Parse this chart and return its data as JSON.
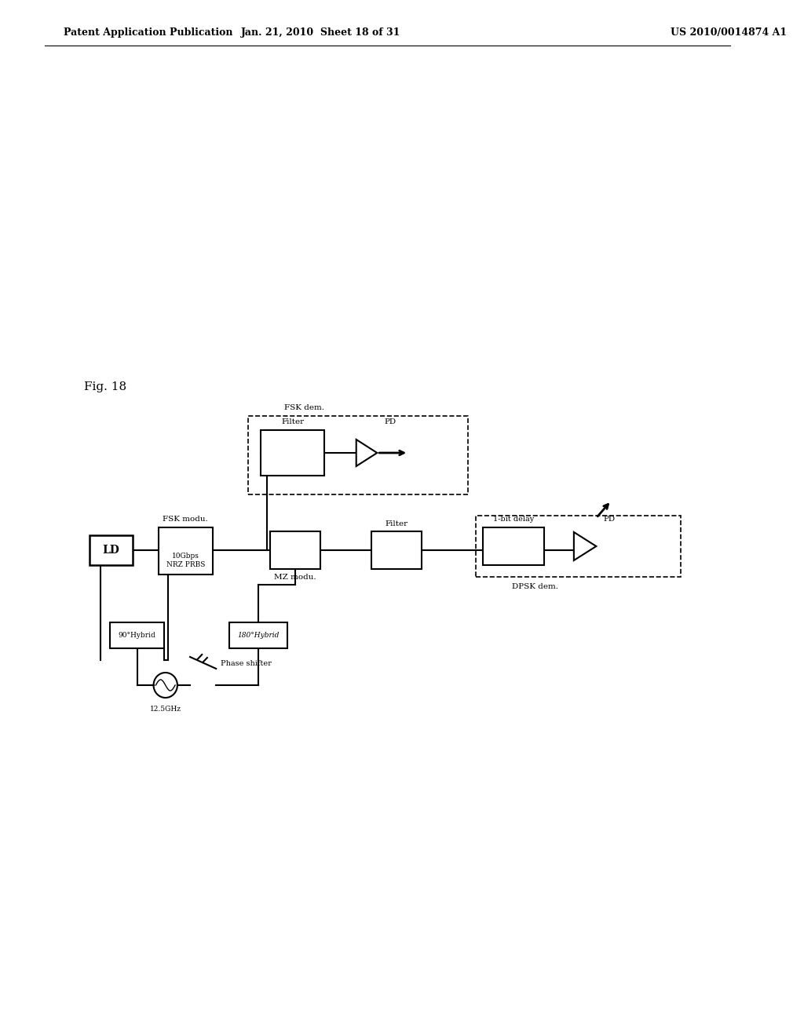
{
  "bg_color": "#ffffff",
  "header_left": "Patent Application Publication",
  "header_center": "Jan. 21, 2010  Sheet 18 of 31",
  "header_right": "US 2010/0014874 A1",
  "fig_label": "Fig. 18",
  "fsk_dem_label": "FSK dem.",
  "dpsk_label": "DPSK dem.",
  "fsk_modu_label": "FSK modu.",
  "mz_modu_label": "MZ modu.",
  "filter_label1": "Filter",
  "filter_label2": "Filter",
  "pd_label1": "PD",
  "pd_label2": "PD",
  "ld_label": "LD",
  "onebit_label": "1-bit delay",
  "data_label": "10Gbps\nNRZ PRBS",
  "hybrid90_label": "90°Hybrid",
  "hybrid180_label": "180°Hybrid",
  "phase_shifter_label": "Phase shifter",
  "freq_label": "12.5GHz"
}
